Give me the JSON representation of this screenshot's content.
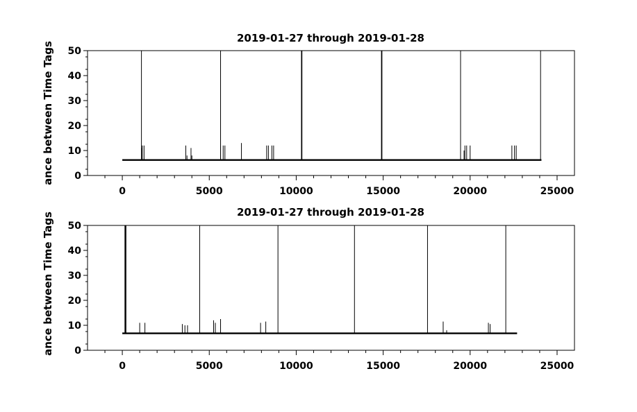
{
  "chart_data": [
    {
      "type": "line",
      "title": "2019-01-27 through 2019-01-28",
      "xlabel": "",
      "ylabel": "ance between Time Tags",
      "xlim": [
        -2000,
        26000
      ],
      "ylim": [
        0,
        50
      ],
      "x_ticks": [
        0,
        5000,
        10000,
        15000,
        20000,
        25000
      ],
      "y_ticks": [
        0,
        10,
        20,
        30,
        40,
        50
      ],
      "grid": false,
      "baseline": {
        "x_range": [
          0,
          24100
        ],
        "value": 6.2
      },
      "series": [
        {
          "x": [
            1100,
            1150,
            1250,
            3650,
            3720,
            3950,
            4000,
            5650,
            5800,
            5900,
            6850,
            8300,
            8400,
            8600,
            8700,
            19650,
            19700,
            19800,
            20000,
            22400,
            22550,
            22650,
            1100,
            5650,
            10300,
            10330,
            14900,
            14930,
            19450,
            24050
          ],
          "values": [
            11,
            12,
            12,
            12,
            8,
            11,
            8,
            12,
            12,
            12,
            13,
            12,
            12,
            12,
            12,
            10,
            12,
            12,
            12,
            12,
            12,
            12,
            50,
            50,
            50,
            50,
            50,
            50,
            50,
            50
          ]
        }
      ]
    },
    {
      "type": "line",
      "title": "2019-01-27 through 2019-01-28",
      "xlabel": "",
      "ylabel": "ance between Time Tags",
      "xlim": [
        -2000,
        26000
      ],
      "ylim": [
        0,
        50
      ],
      "x_ticks": [
        0,
        5000,
        10000,
        15000,
        20000,
        25000
      ],
      "y_ticks": [
        0,
        10,
        20,
        30,
        40,
        50
      ],
      "grid": false,
      "baseline": {
        "x_range": [
          0,
          22700
        ],
        "value": 6.8
      },
      "series": [
        {
          "x": [
            1000,
            1300,
            3450,
            3600,
            3750,
            5250,
            5350,
            5650,
            7950,
            8250,
            18450,
            18650,
            21050,
            21150,
            150,
            180,
            210,
            4450,
            8950,
            13350,
            17550,
            22050
          ],
          "values": [
            11,
            11,
            10.5,
            10,
            10,
            12,
            11,
            12.5,
            11,
            11.5,
            11.5,
            8,
            11,
            10.5,
            50,
            50,
            50,
            50,
            50,
            50,
            50,
            50
          ]
        }
      ]
    }
  ]
}
